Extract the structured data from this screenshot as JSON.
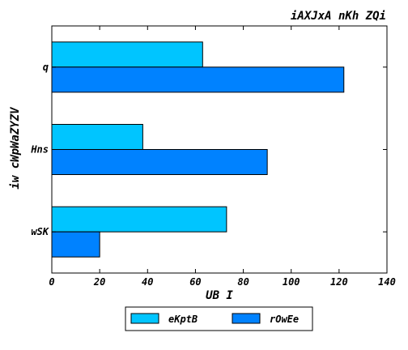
{
  "chart_data": {
    "type": "bar",
    "orientation": "horizontal",
    "title": "iAXJxA nKh ZQi",
    "xlabel": "UB I",
    "ylabel": "iw cWpWaZYZV",
    "categories": [
      "wSK",
      "Hns",
      "q"
    ],
    "series": [
      {
        "name": "eKptB",
        "values": [
          73,
          38,
          63
        ],
        "color": "#00c5ff"
      },
      {
        "name": "rOwEe",
        "values": [
          20,
          90,
          122
        ],
        "color": "#0082ff"
      }
    ],
    "xlim": [
      0,
      140
    ],
    "xticks": [
      0,
      20,
      40,
      60,
      80,
      100,
      120,
      140
    ],
    "grid": false,
    "legend_position": "bottom-center"
  }
}
